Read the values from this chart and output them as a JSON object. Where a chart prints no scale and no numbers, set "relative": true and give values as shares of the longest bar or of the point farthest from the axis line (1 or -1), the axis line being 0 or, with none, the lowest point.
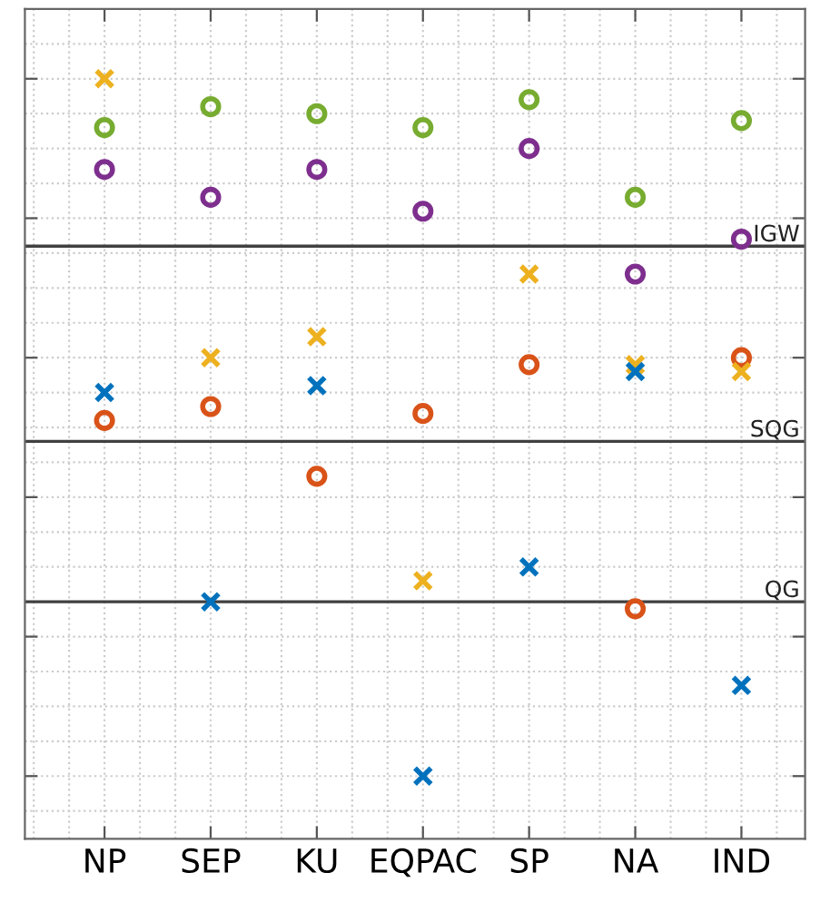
{
  "chart_data": {
    "type": "scatter",
    "relative": true,
    "grid": true,
    "tick_labels": "x",
    "categories": [
      "NP",
      "SEP",
      "KU",
      "EQPAC",
      "SP",
      "NA",
      "IND"
    ],
    "series": [
      {
        "color": "#77ac30",
        "marker": "circle",
        "values": [
          0.93,
          0.96,
          0.95,
          0.93,
          0.97,
          0.83,
          0.94
        ]
      },
      {
        "color": "#7e2f8e",
        "marker": "circle",
        "values": [
          0.87,
          0.83,
          0.87,
          0.81,
          0.9,
          0.72,
          0.77
        ]
      },
      {
        "color": "#d95319",
        "marker": "circle",
        "values": [
          0.51,
          0.53,
          0.43,
          0.52,
          0.59,
          0.24,
          0.6
        ]
      },
      {
        "color": "#edb120",
        "marker": "cross",
        "values": [
          1.0,
          0.6,
          0.63,
          0.28,
          0.72,
          0.59,
          0.58
        ]
      },
      {
        "color": "#0072bd",
        "marker": "cross",
        "values": [
          0.55,
          0.25,
          0.56,
          0.0,
          0.3,
          0.58,
          0.13
        ]
      }
    ],
    "ref_lines": [
      {
        "axis": "y",
        "value": 0.76,
        "label": "IGW",
        "color": "#404040"
      },
      {
        "axis": "y",
        "value": 0.48,
        "label": "SQG",
        "color": "#404040"
      },
      {
        "axis": "y",
        "value": 0.25,
        "label": "QG",
        "color": "#404040"
      }
    ]
  }
}
